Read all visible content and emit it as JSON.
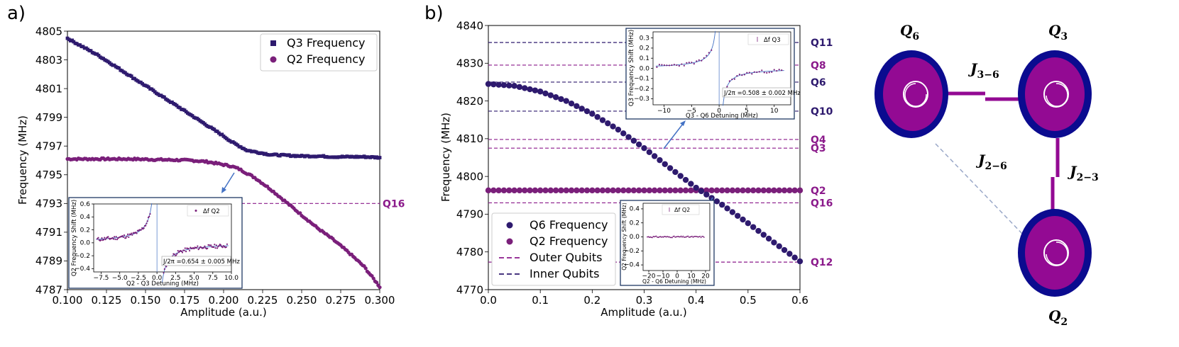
{
  "panels": {
    "a": "a)",
    "b": "b)"
  },
  "chart_data": [
    {
      "id": "a",
      "type": "scatter",
      "xlabel": "Amplitude (a.u.)",
      "ylabel": "Frequency (MHz)",
      "xlim": [
        0.1,
        0.3
      ],
      "ylim": [
        4787,
        4805
      ],
      "xticks": [
        0.1,
        0.125,
        0.15,
        0.175,
        0.2,
        0.225,
        0.25,
        0.275,
        0.3
      ],
      "xtick_labels": [
        "0.100",
        "0.125",
        "0.150",
        "0.175",
        "0.200",
        "0.225",
        "0.250",
        "0.275",
        "0.300"
      ],
      "yticks": [
        4787,
        4789,
        4791,
        4793,
        4795,
        4797,
        4799,
        4801,
        4803,
        4805
      ],
      "legend_position": "top-right",
      "series": [
        {
          "name": "Q3 Frequency",
          "marker": "square",
          "color": "#2e1a6e",
          "x": [
            0.1,
            0.11,
            0.12,
            0.13,
            0.14,
            0.15,
            0.16,
            0.17,
            0.18,
            0.19,
            0.2,
            0.205,
            0.21,
            0.215,
            0.22,
            0.23,
            0.24,
            0.25,
            0.26,
            0.27,
            0.28,
            0.29,
            0.3
          ],
          "y": [
            4804.5,
            4803.9,
            4803.3,
            4802.6,
            4801.9,
            4801.2,
            4800.5,
            4799.8,
            4799.1,
            4798.4,
            4797.7,
            4797.3,
            4797.0,
            4796.7,
            4796.6,
            4796.4,
            4796.35,
            4796.3,
            4796.3,
            4796.25,
            4796.25,
            4796.25,
            4796.2
          ]
        },
        {
          "name": "Q2 Frequency",
          "marker": "circle",
          "color": "#7a1f7a",
          "x": [
            0.1,
            0.12,
            0.14,
            0.16,
            0.18,
            0.19,
            0.2,
            0.205,
            0.21,
            0.215,
            0.22,
            0.23,
            0.24,
            0.25,
            0.26,
            0.27,
            0.28,
            0.29,
            0.3
          ],
          "y": [
            4796.1,
            4796.1,
            4796.1,
            4796.05,
            4796.0,
            4795.9,
            4795.7,
            4795.6,
            4795.4,
            4795.1,
            4794.8,
            4794.0,
            4793.1,
            4792.2,
            4791.3,
            4790.5,
            4789.6,
            4788.6,
            4787.2
          ]
        }
      ],
      "hlines": [
        {
          "label": "Q16",
          "y": 4793,
          "color": "#8b1a8b",
          "style": "dashed"
        }
      ]
    },
    {
      "id": "a-inset",
      "type": "scatter",
      "xlabel": "Q2 - Q3 Detuning (MHz)",
      "ylabel": "Q2 Frequency Shift (MHz)",
      "xlim": [
        -8.5,
        10
      ],
      "ylim": [
        -0.45,
        0.6
      ],
      "xticks": [
        -7.5,
        -5,
        -2.5,
        0,
        2.5,
        5,
        7.5,
        10
      ],
      "xtick_labels": [
        "−7.5",
        "−5.0",
        "−2.5",
        "0.0",
        "2.5",
        "5.0",
        "7.5",
        "10.0"
      ],
      "yticks": [
        -0.4,
        -0.2,
        0.0,
        0.2,
        0.4,
        0.6
      ],
      "ytick_labels": [
        "−0.4",
        "−0.2",
        "0.0",
        "0.2",
        "0.4",
        "0.6"
      ],
      "legend": "Δf  Q2",
      "annotation": "J/2π =0.654 ± 0.005 MHz",
      "pole_x": 0
    },
    {
      "id": "b",
      "type": "scatter",
      "xlabel": "Amplitude (a.u.)",
      "ylabel": "Frequency (MHz)",
      "xlim": [
        0.0,
        0.6
      ],
      "ylim": [
        4770,
        4840
      ],
      "xticks": [
        0.0,
        0.1,
        0.2,
        0.3,
        0.4,
        0.5,
        0.6
      ],
      "xtick_labels": [
        "0.0",
        "0.1",
        "0.2",
        "0.3",
        "0.4",
        "0.5",
        "0.6"
      ],
      "yticks": [
        4770,
        4780,
        4790,
        4800,
        4810,
        4820,
        4830,
        4840
      ],
      "legend_position": "bottom-left",
      "series": [
        {
          "name": "Q6 Frequency",
          "marker": "circle",
          "color": "#2e1a6e",
          "x": [
            0.0,
            0.05,
            0.1,
            0.15,
            0.2,
            0.25,
            0.3,
            0.35,
            0.4,
            0.45,
            0.5,
            0.55,
            0.6
          ],
          "y": [
            4824.5,
            4824.0,
            4822.5,
            4820.0,
            4816.6,
            4812.4,
            4807.5,
            4802.2,
            4797.0,
            4792.5,
            4787.6,
            4782.5,
            4777.5
          ]
        },
        {
          "name": "Q2 Frequency",
          "marker": "circle",
          "color": "#7a1f7a",
          "x": [
            0.0,
            0.6
          ],
          "y": [
            4796.3,
            4796.3
          ]
        }
      ],
      "hlines": [
        {
          "label": "Q11",
          "y": 4835.5,
          "type": "Inner Qubits"
        },
        {
          "label": "Q8",
          "y": 4829.5,
          "type": "Outer Qubits"
        },
        {
          "label": "Q6",
          "y": 4825.0,
          "type": "Inner Qubits"
        },
        {
          "label": "Q10",
          "y": 4817.3,
          "type": "Inner Qubits"
        },
        {
          "label": "Q4",
          "y": 4809.8,
          "type": "Outer Qubits"
        },
        {
          "label": "Q3",
          "y": 4807.5,
          "type": "Outer Qubits"
        },
        {
          "label": "Q2",
          "y": 4796.3,
          "type": "Outer Qubits"
        },
        {
          "label": "Q16",
          "y": 4793.0,
          "type": "Outer Qubits"
        },
        {
          "label": "Q12",
          "y": 4777.3,
          "type": "Outer Qubits"
        }
      ],
      "legend_extra": [
        "Outer Qubits",
        "Inner Qubits"
      ],
      "outer_color": "#8b1a8b",
      "inner_color": "#2e1a6e"
    },
    {
      "id": "b-inset-top",
      "type": "scatter",
      "xlabel": "Q3 - Q6 Detuning (MHz)",
      "ylabel": "Q3 Frequency Shift (MHz)",
      "xlim": [
        -12,
        13
      ],
      "ylim": [
        -0.36,
        0.36
      ],
      "xticks": [
        -10,
        -5,
        0,
        5,
        10
      ],
      "xtick_labels": [
        "−10",
        "−5",
        "0",
        "5",
        "10"
      ],
      "yticks": [
        -0.3,
        -0.2,
        -0.1,
        0.0,
        0.1,
        0.2,
        0.3
      ],
      "ytick_labels": [
        "−0.3",
        "−0.2",
        "−0.1",
        "0.0",
        "0.1",
        "0.2",
        "0.3"
      ],
      "legend": "Δf  Q3",
      "annotation": "J/2π =0.508 ± 0.002 MHz",
      "pole_x": 0
    },
    {
      "id": "b-inset-bottom",
      "type": "scatter",
      "xlabel": "Q2 - Q6 Detuning (MHz)",
      "ylabel": "Q2 Frequency Shift (MHz)",
      "xlim": [
        -24,
        23
      ],
      "ylim": [
        -0.48,
        0.48
      ],
      "xticks": [
        -20,
        -10,
        0,
        10,
        20
      ],
      "xtick_labels": [
        "−20",
        "−10",
        "0",
        "10",
        "20"
      ],
      "yticks": [
        -0.4,
        -0.2,
        0.0,
        0.2,
        0.4
      ],
      "ytick_labels": [
        "−0.4",
        "−0.2",
        "0.0",
        "0.2",
        "0.4"
      ],
      "legend": "Δf  Q2"
    }
  ],
  "diagram": {
    "nodes": [
      {
        "id": "Q6",
        "label": "Q",
        "sub": "6"
      },
      {
        "id": "Q3",
        "label": "Q",
        "sub": "3"
      },
      {
        "id": "Q2",
        "label": "Q",
        "sub": "2"
      }
    ],
    "couplings": [
      {
        "label": "J",
        "sub": "3−6"
      },
      {
        "label": "J",
        "sub": "2−6"
      },
      {
        "label": "J",
        "sub": "2−3"
      }
    ],
    "colors": {
      "outer": "#0b0b8f",
      "inner": "#930a93",
      "coupler": "#930a93",
      "dashed": "#9aa8c8"
    }
  }
}
